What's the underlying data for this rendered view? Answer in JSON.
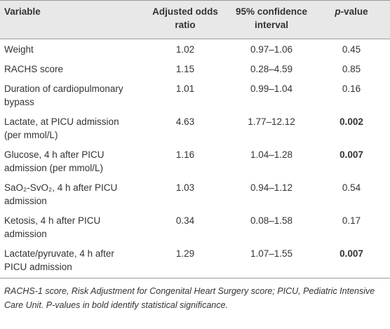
{
  "table": {
    "columns": [
      "Variable",
      "Adjusted odds ratio",
      "95% confidence interval",
      {
        "emphasis": "p",
        "text": "-value"
      }
    ],
    "rows": [
      {
        "cells": [
          "Weight",
          "1.02",
          "0.97–1.06",
          "0.45"
        ],
        "significant": false
      },
      {
        "cells": [
          "RACHS score",
          "1.15",
          "0.28–4.59",
          "0.85"
        ],
        "significant": false
      },
      {
        "cells": [
          "Duration of cardiopulmonary bypass",
          "1.01",
          "0.99–1.04",
          "0.16"
        ],
        "significant": false
      },
      {
        "cells": [
          "Lactate, at PICU admission (per mmol/L)",
          "4.63",
          "1.77–12.12",
          "0.002"
        ],
        "significant": true
      },
      {
        "cells": [
          "Glucose, 4 h after PICU admission (per mmol/L)",
          "1.16",
          "1.04–1.28",
          "0.007"
        ],
        "significant": true
      },
      {
        "cells": [
          "SaO₂-SvO₂, 4 h after PICU admission",
          "1.03",
          "0.94–1.12",
          "0.54"
        ],
        "significant": false
      },
      {
        "cells": [
          "Ketosis, 4 h after PICU admission",
          "0.34",
          "0.08–1.58",
          "0.17"
        ],
        "significant": false
      },
      {
        "cells": [
          "Lactate/pyruvate, 4 h after PICU admission",
          "1.29",
          "1.07–1.55",
          "0.007"
        ],
        "significant": true
      }
    ],
    "footnote": "RACHS-1 score, Risk Adjustment for Congenital Heart Surgery score; PICU, Pediatric Intensive Care Unit. P-values in bold identify statistical significance."
  }
}
